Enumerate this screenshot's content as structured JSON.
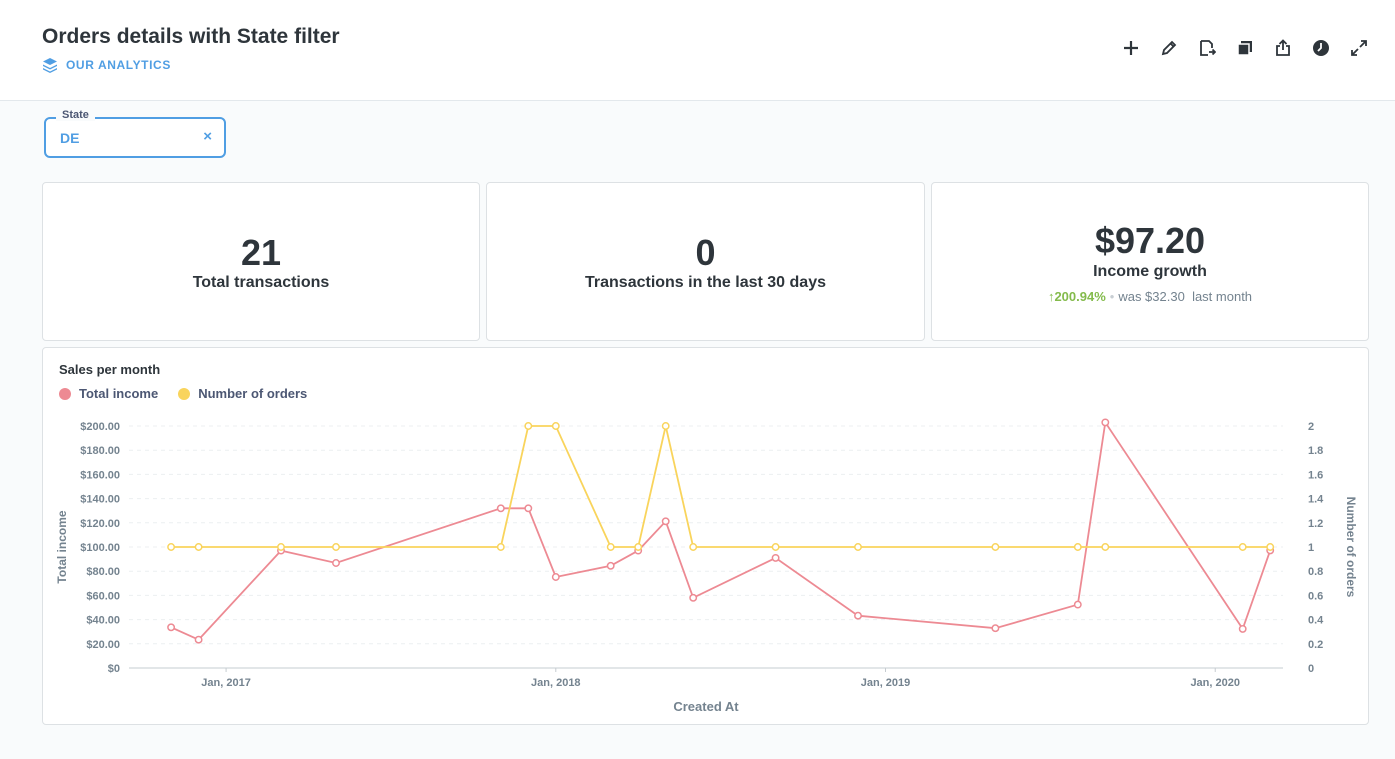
{
  "header": {
    "title": "Orders details with State filter",
    "collection": "OUR ANALYTICS"
  },
  "toolbar": {
    "icons": [
      "plus-icon",
      "pencil-icon",
      "add-to-dashboard-icon",
      "duplicate-icon",
      "share-icon",
      "clock-icon",
      "fullscreen-icon"
    ]
  },
  "filter": {
    "label": "State",
    "value": "DE"
  },
  "metrics": [
    {
      "value": "21",
      "label": "Total transactions"
    },
    {
      "value": "0",
      "label": "Transactions in the last 30 days"
    },
    {
      "value": "$97.20",
      "label": "Income growth",
      "change": "200.94%",
      "previous": "was $32.30",
      "period": "last month"
    }
  ],
  "colors": {
    "accent": "#509ee3",
    "income": "#ed8a93",
    "orders": "#f9d45c",
    "positive": "#84bb4c"
  },
  "chart_data": {
    "type": "line",
    "title": "Sales per month",
    "xlabel": "Created At",
    "ylabel": "Total income",
    "y2label": "Number of orders",
    "x_ticks": [
      "Jan, 2017",
      "Jan, 2018",
      "Jan, 2019",
      "Jan, 2020"
    ],
    "y_ticks": [
      "$0",
      "$20.00",
      "$40.00",
      "$60.00",
      "$80.00",
      "$100.00",
      "$120.00",
      "$140.00",
      "$160.00",
      "$180.00",
      "$200.00"
    ],
    "y2_ticks": [
      "0",
      "0.2",
      "0.4",
      "0.6",
      "0.8",
      "1",
      "1.2",
      "1.4",
      "1.6",
      "1.8",
      "2"
    ],
    "ylim": [
      0,
      200
    ],
    "y2lim": [
      0,
      2
    ],
    "xlim": [
      "2016-09-15",
      "2020-03-15"
    ],
    "grid": true,
    "legend": "top-left",
    "x": [
      "2016-11",
      "2016-12",
      "2017-03",
      "2017-05",
      "2017-11",
      "2017-12",
      "2018-01",
      "2018-03",
      "2018-04",
      "2018-05",
      "2018-06",
      "2018-09",
      "2018-12",
      "2019-05",
      "2019-08",
      "2019-09",
      "2020-02",
      "2020-03"
    ],
    "series": [
      {
        "name": "Total income",
        "axis": "left",
        "values": [
          33.6,
          23.4,
          97.0,
          86.8,
          132.0,
          132.0,
          75.2,
          84.5,
          97.0,
          121.2,
          58.0,
          91.0,
          43.2,
          32.9,
          52.4,
          203.0,
          32.3,
          97.2
        ]
      },
      {
        "name": "Number of orders",
        "axis": "right",
        "values": [
          1,
          1,
          1,
          1,
          1,
          2,
          2,
          1,
          1,
          2,
          1,
          1,
          1,
          1,
          1,
          1,
          1,
          1
        ]
      }
    ]
  }
}
